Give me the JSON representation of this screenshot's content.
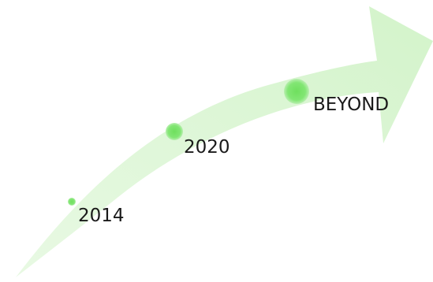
{
  "diagram": {
    "milestones": [
      {
        "label": "2014"
      },
      {
        "label": "2020"
      },
      {
        "label": "BEYOND"
      }
    ],
    "colors": {
      "arrow_fill": "#dff7d8",
      "arrow_fill_strong": "#d3f3ca",
      "dot_fill": "#7be36c",
      "dot_glow": "#c6f3bd",
      "label_text": "#1a1a1a"
    }
  }
}
